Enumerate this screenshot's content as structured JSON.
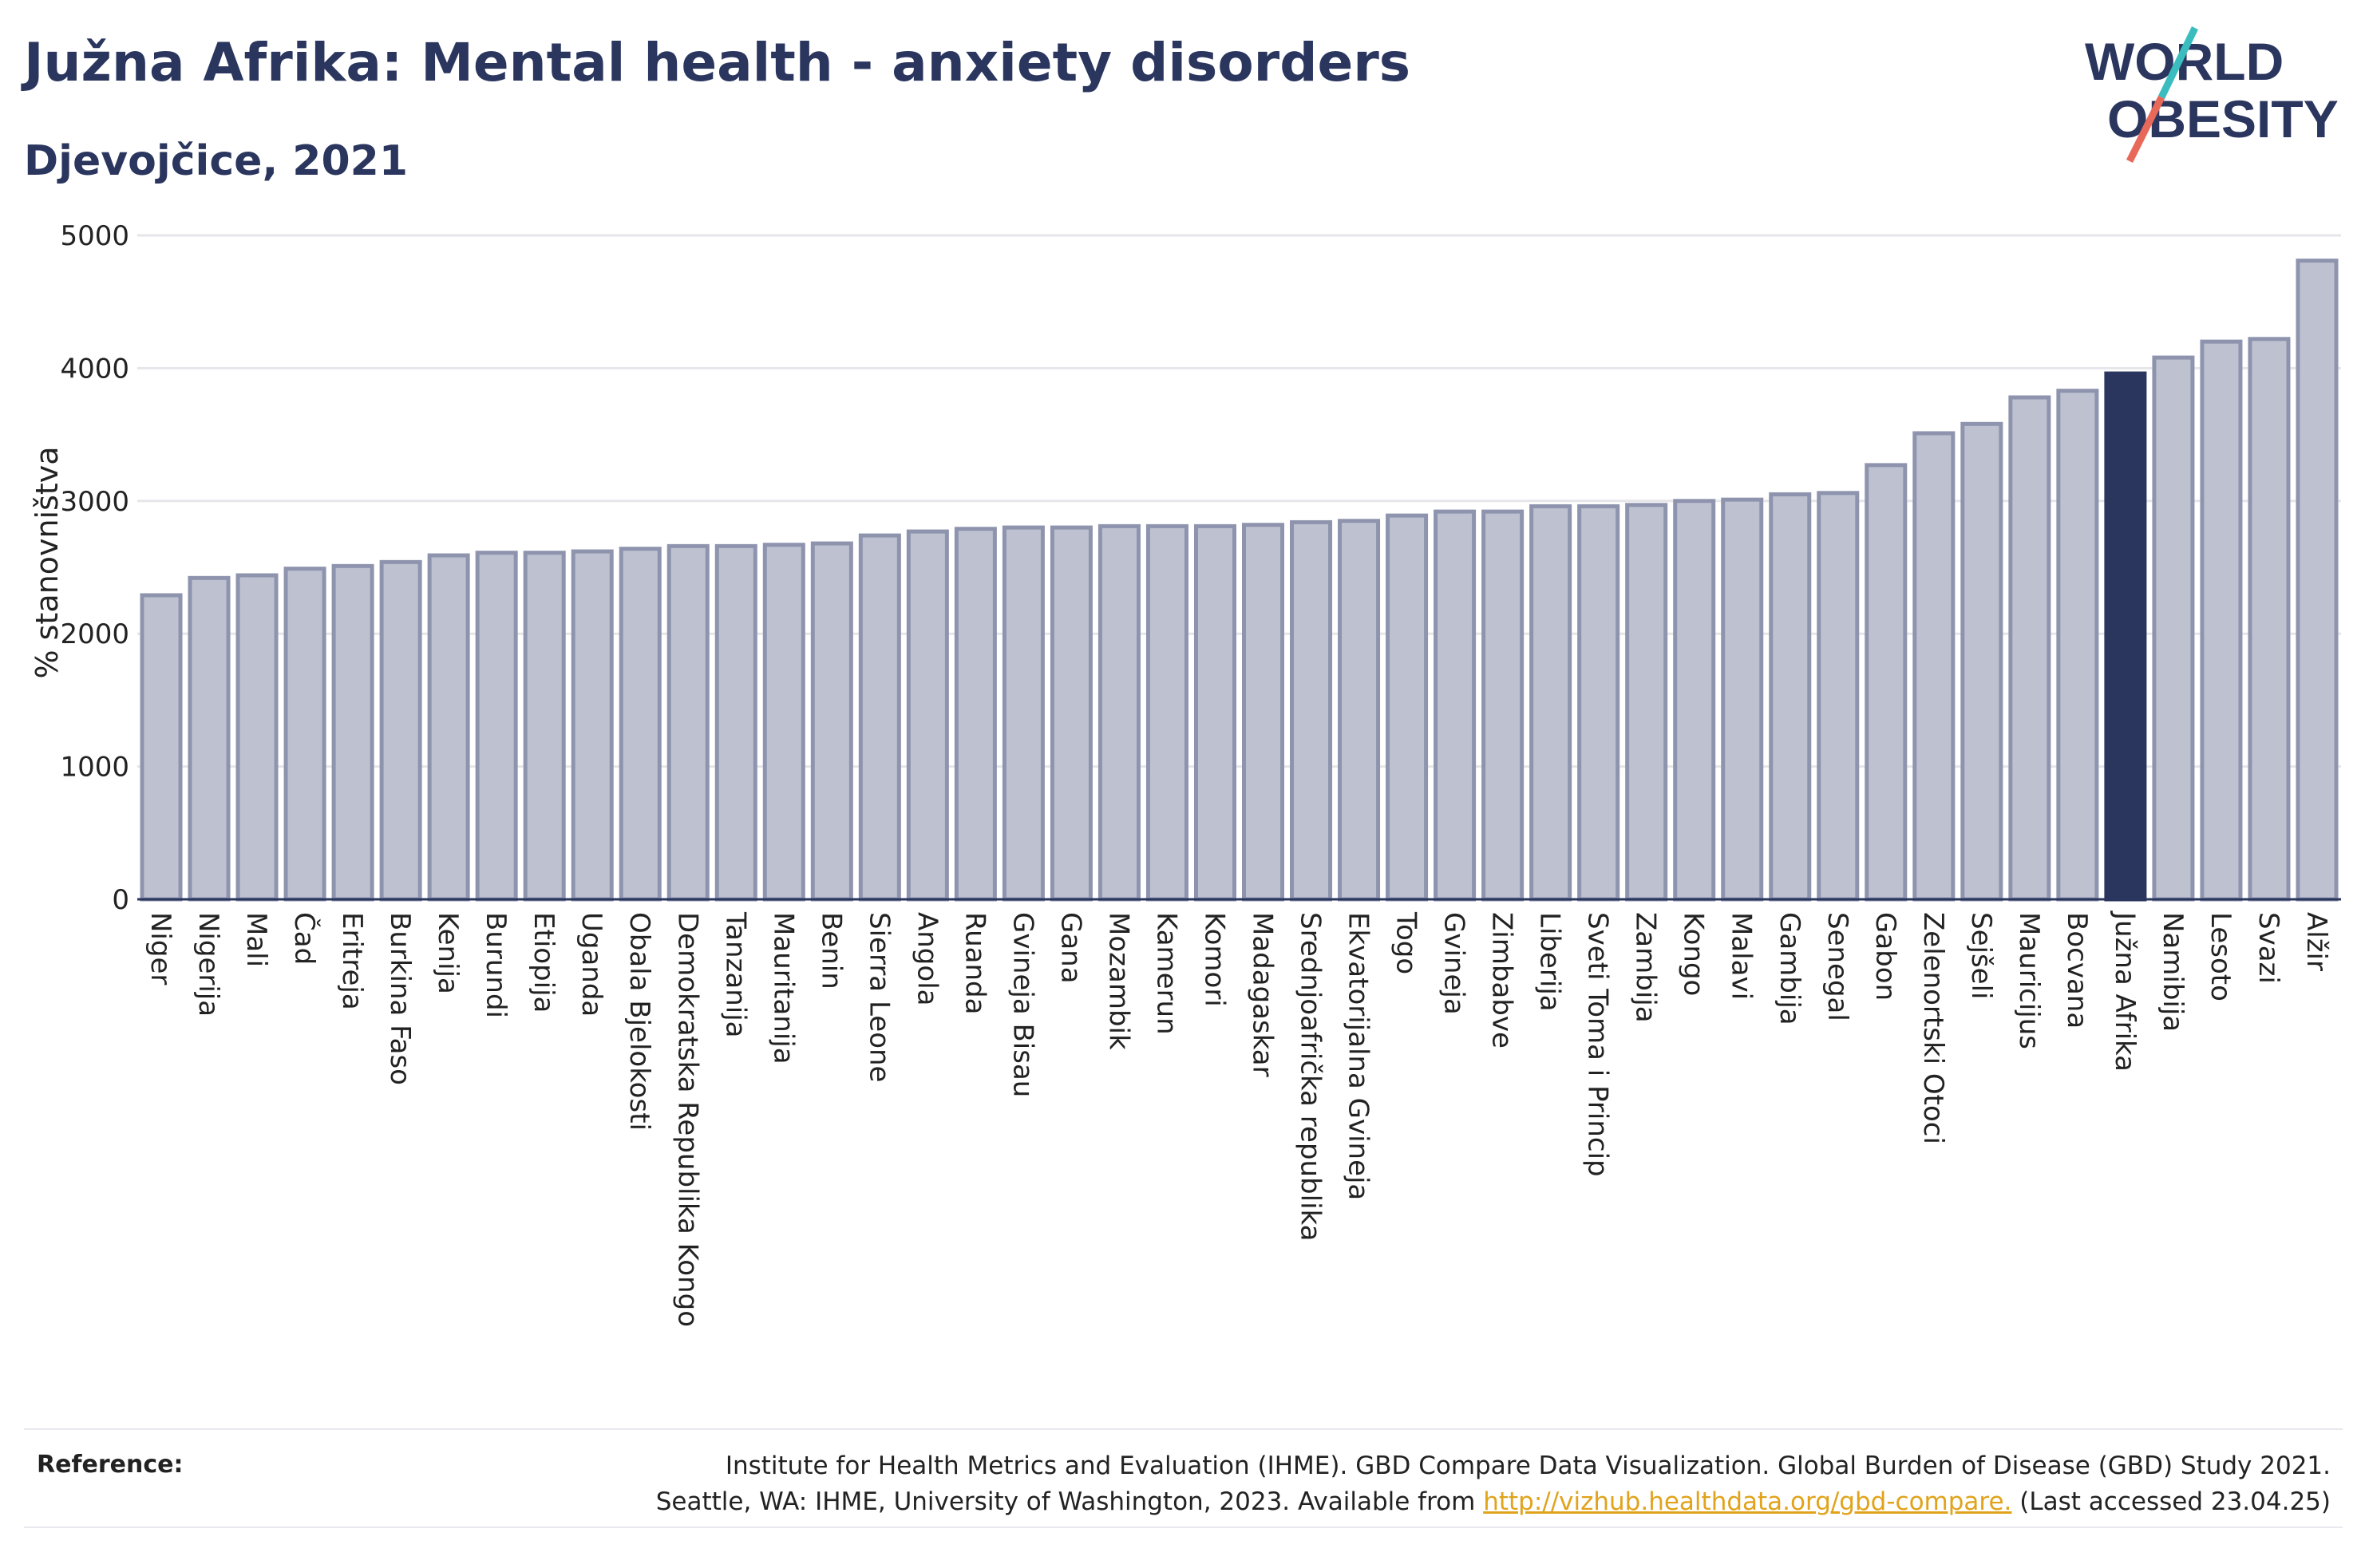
{
  "header": {
    "title": "Južna Afrika: Mental health - anxiety disorders",
    "subtitle": "Djevojčice, 2021"
  },
  "logo": {
    "line1": "WORLD",
    "line2": "OBESITY",
    "text_color": "#2b365f",
    "accent_teal": "#3bbdc0",
    "accent_coral": "#e8685a"
  },
  "footer": {
    "label": "Reference:",
    "line1": "Institute for Health Metrics and Evaluation (IHME). GBD Compare Data Visualization. Global Burden of Disease (GBD) Study 2021.",
    "line2_prefix": "Seattle, WA: IHME, University of Washington, 2023. Available from ",
    "link": "http://vizhub.healthdata.org/gbd-compare.",
    "line2_suffix": " (Last accessed 23.04.25)"
  },
  "colors": {
    "bar_default": "#bec2d0",
    "bar_border": "#8e94ae",
    "bar_highlight": "#2b365f",
    "grid": "#e6e6ea",
    "axis": "#2b365f"
  },
  "chart_data": {
    "type": "bar",
    "title": "Južna Afrika: Mental health - anxiety disorders",
    "subtitle": "Djevojčice, 2021",
    "xlabel": "",
    "ylabel": "% stanovništva",
    "ylim": [
      0,
      5000
    ],
    "yticks": [
      0,
      1000,
      2000,
      3000,
      4000,
      5000
    ],
    "grid": true,
    "highlight": "Južna Afrika",
    "categories": [
      "Niger",
      "Nigerija",
      "Mali",
      "Čad",
      "Eritreja",
      "Burkina Faso",
      "Kenija",
      "Burundi",
      "Etiopija",
      "Uganda",
      "Obala Bjelokosti",
      "Demokratska Republika Kongo",
      "Tanzanija",
      "Mauritanija",
      "Benin",
      "Sierra Leone",
      "Angola",
      "Ruanda",
      "Gvineja Bisau",
      "Gana",
      "Mozambik",
      "Kamerun",
      "Komori",
      "Madagaskar",
      "Srednjoafrička republika",
      "Ekvatorijalna Gvineja",
      "Togo",
      "Gvineja",
      "Zimbabve",
      "Liberija",
      "Sveti Toma i Princip",
      "Zambija",
      "Kongo",
      "Malavi",
      "Gambija",
      "Senegal",
      "Gabon",
      "Zelenortski Otoci",
      "Sejšeli",
      "Mauricijus",
      "Bocvana",
      "Južna Afrika",
      "Namibija",
      "Lesoto",
      "Svazi",
      "Alžir"
    ],
    "values": [
      2290,
      2420,
      2440,
      2490,
      2510,
      2540,
      2590,
      2610,
      2610,
      2620,
      2640,
      2660,
      2660,
      2670,
      2680,
      2740,
      2770,
      2790,
      2800,
      2800,
      2810,
      2810,
      2810,
      2820,
      2840,
      2850,
      2890,
      2920,
      2920,
      2960,
      2960,
      2970,
      3000,
      3010,
      3050,
      3060,
      3270,
      3510,
      3580,
      3780,
      3830,
      3960,
      4080,
      4200,
      4220,
      4810
    ]
  }
}
